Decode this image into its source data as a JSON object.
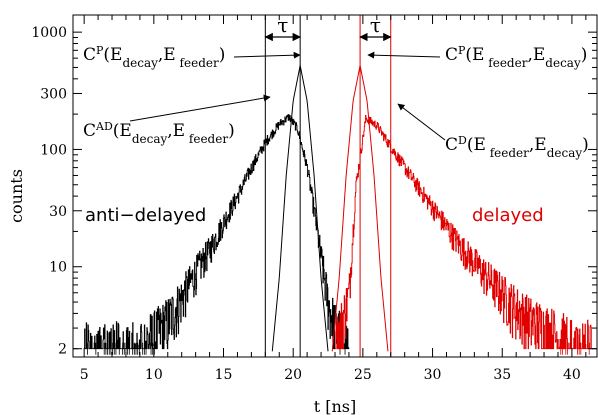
{
  "chart_data": {
    "type": "line",
    "title": "",
    "xlabel": "t [ns]",
    "ylabel": "counts",
    "xlim": [
      4.2,
      41.8
    ],
    "ylim": [
      1.7,
      1400
    ],
    "yscale": "log",
    "grid": false,
    "xticks": [
      5,
      10,
      15,
      20,
      25,
      30,
      35,
      40
    ],
    "xtick_labels": [
      "5",
      "10",
      "15",
      "20",
      "25",
      "30",
      "35",
      "40"
    ],
    "yticks": [
      2,
      10,
      30,
      100,
      300,
      1000
    ],
    "ytick_labels": [
      "2",
      "10",
      "30",
      "100",
      "300",
      "1000"
    ],
    "series": [
      {
        "name": "anti−delayed",
        "color": "#000000",
        "kind": "histogram",
        "peak": {
          "x": 19.7,
          "y": 190
        },
        "x": [
          5,
          8,
          10,
          11,
          12,
          13,
          14,
          15,
          16,
          17,
          18,
          19,
          19.7,
          20.3,
          21,
          21.5,
          22,
          22.5,
          23,
          24
        ],
        "values": [
          2,
          2,
          2.5,
          3.5,
          5.5,
          9,
          14,
          24,
          40,
          70,
          115,
          165,
          190,
          150,
          70,
          30,
          12,
          5,
          3,
          2
        ]
      },
      {
        "name": "delayed",
        "color": "#e00000",
        "kind": "histogram",
        "peak": {
          "x": 25.2,
          "y": 185
        },
        "x": [
          23,
          24,
          24.5,
          25.2,
          26,
          27,
          28,
          29,
          30,
          31,
          32,
          33,
          34,
          35,
          36,
          37,
          38,
          39,
          40,
          41.5
        ],
        "values": [
          2,
          6,
          50,
          185,
          160,
          105,
          70,
          47,
          32,
          22,
          15,
          11,
          8,
          6,
          4.5,
          3.5,
          3,
          2.5,
          2.2,
          2
        ]
      },
      {
        "name": "",
        "color": "#000000",
        "kind": "prompt",
        "x": [
          18.5,
          19.0,
          19.5,
          20.0,
          20.5,
          21.0,
          21.5,
          22.0,
          22.5
        ],
        "values": [
          1.9,
          8,
          60,
          260,
          520,
          260,
          60,
          8,
          1.9
        ]
      },
      {
        "name": "",
        "color": "#e00000",
        "kind": "prompt",
        "x": [
          22.8,
          23.3,
          23.8,
          24.3,
          24.8,
          25.3,
          25.8,
          26.3,
          26.8
        ],
        "values": [
          1.9,
          8,
          60,
          260,
          520,
          260,
          60,
          8,
          1.9
        ]
      }
    ],
    "vertical_lines": [
      {
        "x": 18.0,
        "color": "#000000"
      },
      {
        "x": 20.5,
        "color": "#000000"
      },
      {
        "x": 24.8,
        "color": "#e00000"
      },
      {
        "x": 27.0,
        "color": "#e00000"
      }
    ],
    "tau_symbol": "τ",
    "annotations": {
      "cp_left": {
        "C": "C",
        "sup": "P",
        "open": "(E",
        "sub1": "decay",
        "comma": ",E",
        "sub2": " feeder",
        "close": ")"
      },
      "cad": {
        "C": "C",
        "sup": "AD",
        "open": "(E",
        "sub1": "decay",
        "comma": ",E",
        "sub2": " feeder",
        "close": ")"
      },
      "cp_right": {
        "C": "C",
        "sup": "P",
        "open": "(E",
        "sub1": " feeder",
        "comma": ",E",
        "sub2": "decay",
        "close": ")"
      },
      "cd": {
        "C": "C",
        "sup": "D",
        "open": "(E",
        "sub1": " feeder",
        "comma": ",E",
        "sub2": "decay",
        "close": ")"
      }
    }
  }
}
